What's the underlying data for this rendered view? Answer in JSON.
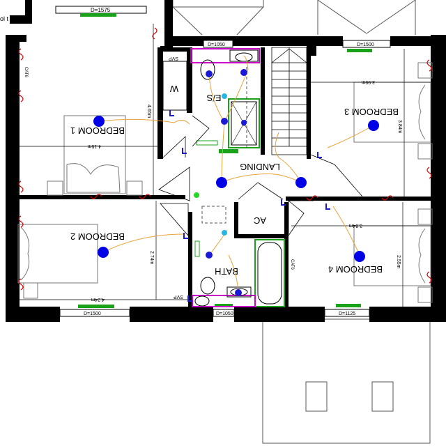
{
  "rooms": {
    "bedroom1": "BEDROOM 1",
    "bedroom2": "BEDROOM 2",
    "bedroom3": "BEDROOM 3",
    "bedroom4": "BEDROOM 4",
    "ensuite": "E/S",
    "wardrobe": "W",
    "landing": "LANDING",
    "airing_cupboard": "AC",
    "bath": "BATH"
  },
  "windows": {
    "bed1": "D=1575",
    "ensuite": "D=1050",
    "bed3": "D=1500",
    "bed2": "D=1500",
    "bath": "D=1050",
    "bed4": "D=1125"
  },
  "dimensions": {
    "bed1_width": "4.15m",
    "bed1_depth": "4.65m",
    "bed2_width": "4.24m",
    "bed2_depth": "2.74m",
    "bed3_width": "3.99m",
    "bed3_depth": "3.84m",
    "bed4_width": "3.84m",
    "bed4_depth": "2.55m"
  },
  "annotations": {
    "svp_top": "SVP",
    "svp_bottom": "SVP",
    "cat6_bed1": "CAT6",
    "cat6_bed4": "CAT6",
    "edge_text": "ol\nt"
  },
  "colors": {
    "wall": "#000000",
    "window_marker": "#1aa31a",
    "light": "#0000e6",
    "wiring": "#e8a33a",
    "socket": "#cc0000",
    "switch": "#1a1ad6",
    "sanitary": "#cc00cc",
    "shower_tray": "#1aa31a"
  }
}
